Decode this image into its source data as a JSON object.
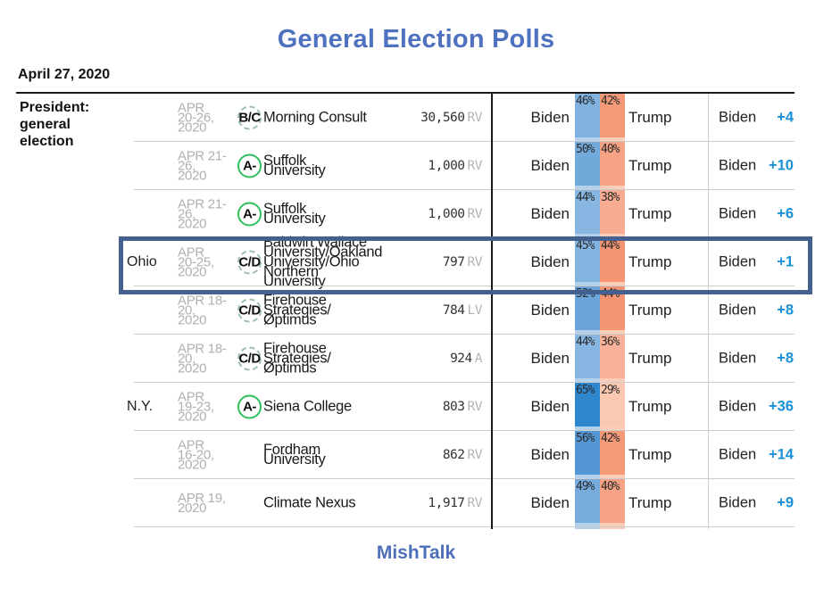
{
  "title": "General Election Polls",
  "as_of_date": "April 27, 2020",
  "footer": {
    "brand": "MishTalk"
  },
  "colors": {
    "title_blue": "#4e72c0",
    "footer_blue": "#4d6fba",
    "margin_blue": "#1a90d6",
    "highlight_border": "#44608e",
    "stripe_base_dem": "#b3d0ec",
    "stripe_base_rep": "#f9cdb8",
    "grade_ring_green": "#2fbf5f",
    "date_gray": "#b0b0b0",
    "separator_gray": "#cccccc"
  },
  "table": {
    "category_label": "President:\ngeneral\nelection",
    "rows": [
      {
        "state": "",
        "date_text": "APR\n20-26,\n2020",
        "grade": "B/C",
        "grade_style": "dashed",
        "pollster_text": "Morning Consult",
        "sample": "30,560",
        "sample_unit": "RV",
        "dem_label": "Biden",
        "rep_label": "Trump",
        "dem_pct": "46%",
        "rep_pct": "42%",
        "dem_color": "#7fb2df",
        "rep_color": "#f49a79",
        "margin_leader": "Biden",
        "margin_value": "+4",
        "highlighted": false
      },
      {
        "state": "",
        "date_text": "APR 21-\n26,\n2020",
        "grade": "A-",
        "grade_style": "solid",
        "pollster_text": "Suffolk\nUniversity",
        "sample": "1,000",
        "sample_unit": "RV",
        "dem_label": "Biden",
        "rep_label": "Trump",
        "dem_pct": "50%",
        "rep_pct": "40%",
        "dem_color": "#72a9db",
        "rep_color": "#f5a285",
        "margin_leader": "Biden",
        "margin_value": "+10",
        "highlighted": false
      },
      {
        "state": "",
        "date_text": "APR 21-\n26,\n2020",
        "grade": "A-",
        "grade_style": "solid",
        "pollster_text": "Suffolk\nUniversity",
        "sample": "1,000",
        "sample_unit": "RV",
        "dem_label": "Biden",
        "rep_label": "Trump",
        "dem_pct": "44%",
        "rep_pct": "38%",
        "dem_color": "#86b6e1",
        "rep_color": "#f7ab90",
        "margin_leader": "Biden",
        "margin_value": "+6",
        "highlighted": false
      },
      {
        "state": "Ohio",
        "date_text": "APR\n20-25,\n2020",
        "grade": "C/D",
        "grade_style": "dashed",
        "pollster_text": "Baldwin Wallace\nUniversity/Oakland\nUniversity/Ohio\nNorthern\nUniversity",
        "sample": "797",
        "sample_unit": "RV",
        "dem_label": "Biden",
        "rep_label": "Trump",
        "dem_pct": "45%",
        "rep_pct": "44%",
        "dem_color": "#82b4e0",
        "rep_color": "#f39572",
        "margin_leader": "Biden",
        "margin_value": "+1",
        "highlighted": true
      },
      {
        "state": "",
        "date_text": "APR 18-\n20,\n2020",
        "grade": "C/D",
        "grade_style": "dashed",
        "pollster_text": "Firehouse\nStrategies/\nØptimus",
        "sample": "784",
        "sample_unit": "LV",
        "dem_label": "Biden",
        "rep_label": "Trump",
        "dem_pct": "52%",
        "rep_pct": "44%",
        "dem_color": "#6aa4d9",
        "rep_color": "#f39572",
        "margin_leader": "Biden",
        "margin_value": "+8",
        "highlighted": false
      },
      {
        "state": "",
        "date_text": "APR 18-\n20,\n2020",
        "grade": "C/D",
        "grade_style": "dashed",
        "pollster_text": "Firehouse\nStrategies/\nØptimus",
        "sample": "924",
        "sample_unit": "A",
        "dem_label": "Biden",
        "rep_label": "Trump",
        "dem_pct": "44%",
        "rep_pct": "36%",
        "dem_color": "#86b6e1",
        "rep_color": "#f8b299",
        "margin_leader": "Biden",
        "margin_value": "+8",
        "highlighted": false
      },
      {
        "state": "N.Y.",
        "date_text": "APR\n19-23,\n2020",
        "grade": "A-",
        "grade_style": "solid",
        "pollster_text": "Siena College",
        "sample": "803",
        "sample_unit": "RV",
        "dem_label": "Biden",
        "rep_label": "Trump",
        "dem_pct": "65%",
        "rep_pct": "29%",
        "dem_color": "#2e86cd",
        "rep_color": "#fbc8b2",
        "margin_leader": "Biden",
        "margin_value": "+36",
        "highlighted": false
      },
      {
        "state": "",
        "date_text": "APR\n16-20,\n2020",
        "grade": "",
        "grade_style": "",
        "pollster_text": "Fordham\nUniversity",
        "sample": "862",
        "sample_unit": "RV",
        "dem_label": "Biden",
        "rep_label": "Trump",
        "dem_pct": "56%",
        "rep_pct": "42%",
        "dem_color": "#5496d4",
        "rep_color": "#f49a79",
        "margin_leader": "Biden",
        "margin_value": "+14",
        "highlighted": false
      },
      {
        "state": "",
        "date_text": "APR 19,\n2020",
        "grade": "",
        "grade_style": "",
        "pollster_text": "Climate Nexus",
        "sample": "1,917",
        "sample_unit": "RV",
        "dem_label": "Biden",
        "rep_label": "Trump",
        "dem_pct": "49%",
        "rep_pct": "40%",
        "dem_color": "#76abdc",
        "rep_color": "#f5a285",
        "margin_leader": "Biden",
        "margin_value": "+9",
        "highlighted": false
      }
    ]
  },
  "chart_data": {
    "type": "table",
    "title": "General Election Polls",
    "as_of": "April 27, 2020",
    "columns": [
      "geo",
      "dates",
      "grade",
      "pollster",
      "sample",
      "sample_type",
      "biden_pct",
      "trump_pct",
      "leader",
      "margin"
    ],
    "rows": [
      [
        "",
        "Apr 20-26, 2020",
        "B/C",
        "Morning Consult",
        30560,
        "RV",
        46,
        42,
        "Biden",
        4
      ],
      [
        "",
        "Apr 21-26, 2020",
        "A-",
        "Suffolk University",
        1000,
        "RV",
        50,
        40,
        "Biden",
        10
      ],
      [
        "",
        "Apr 21-26, 2020",
        "A-",
        "Suffolk University",
        1000,
        "RV",
        44,
        38,
        "Biden",
        6
      ],
      [
        "Ohio",
        "Apr 20-25, 2020",
        "C/D",
        "Baldwin Wallace University/Oakland University/Ohio Northern University",
        797,
        "RV",
        45,
        44,
        "Biden",
        1
      ],
      [
        "",
        "Apr 18-20, 2020",
        "C/D",
        "Firehouse Strategies/Øptimus",
        784,
        "LV",
        52,
        44,
        "Biden",
        8
      ],
      [
        "",
        "Apr 18-20, 2020",
        "C/D",
        "Firehouse Strategies/Øptimus",
        924,
        "A",
        44,
        36,
        "Biden",
        8
      ],
      [
        "N.Y.",
        "Apr 19-23, 2020",
        "A-",
        "Siena College",
        803,
        "RV",
        65,
        29,
        "Biden",
        36
      ],
      [
        "",
        "Apr 16-20, 2020",
        "",
        "Fordham University",
        862,
        "RV",
        56,
        42,
        "Biden",
        14
      ],
      [
        "",
        "Apr 19, 2020",
        "",
        "Climate Nexus",
        1917,
        "RV",
        49,
        40,
        "Biden",
        9
      ]
    ],
    "notes": "Blue band = Biden share, orange band = Trump share; band shade scales with percentage. Ohio row outlined with dark blue highlight box."
  }
}
